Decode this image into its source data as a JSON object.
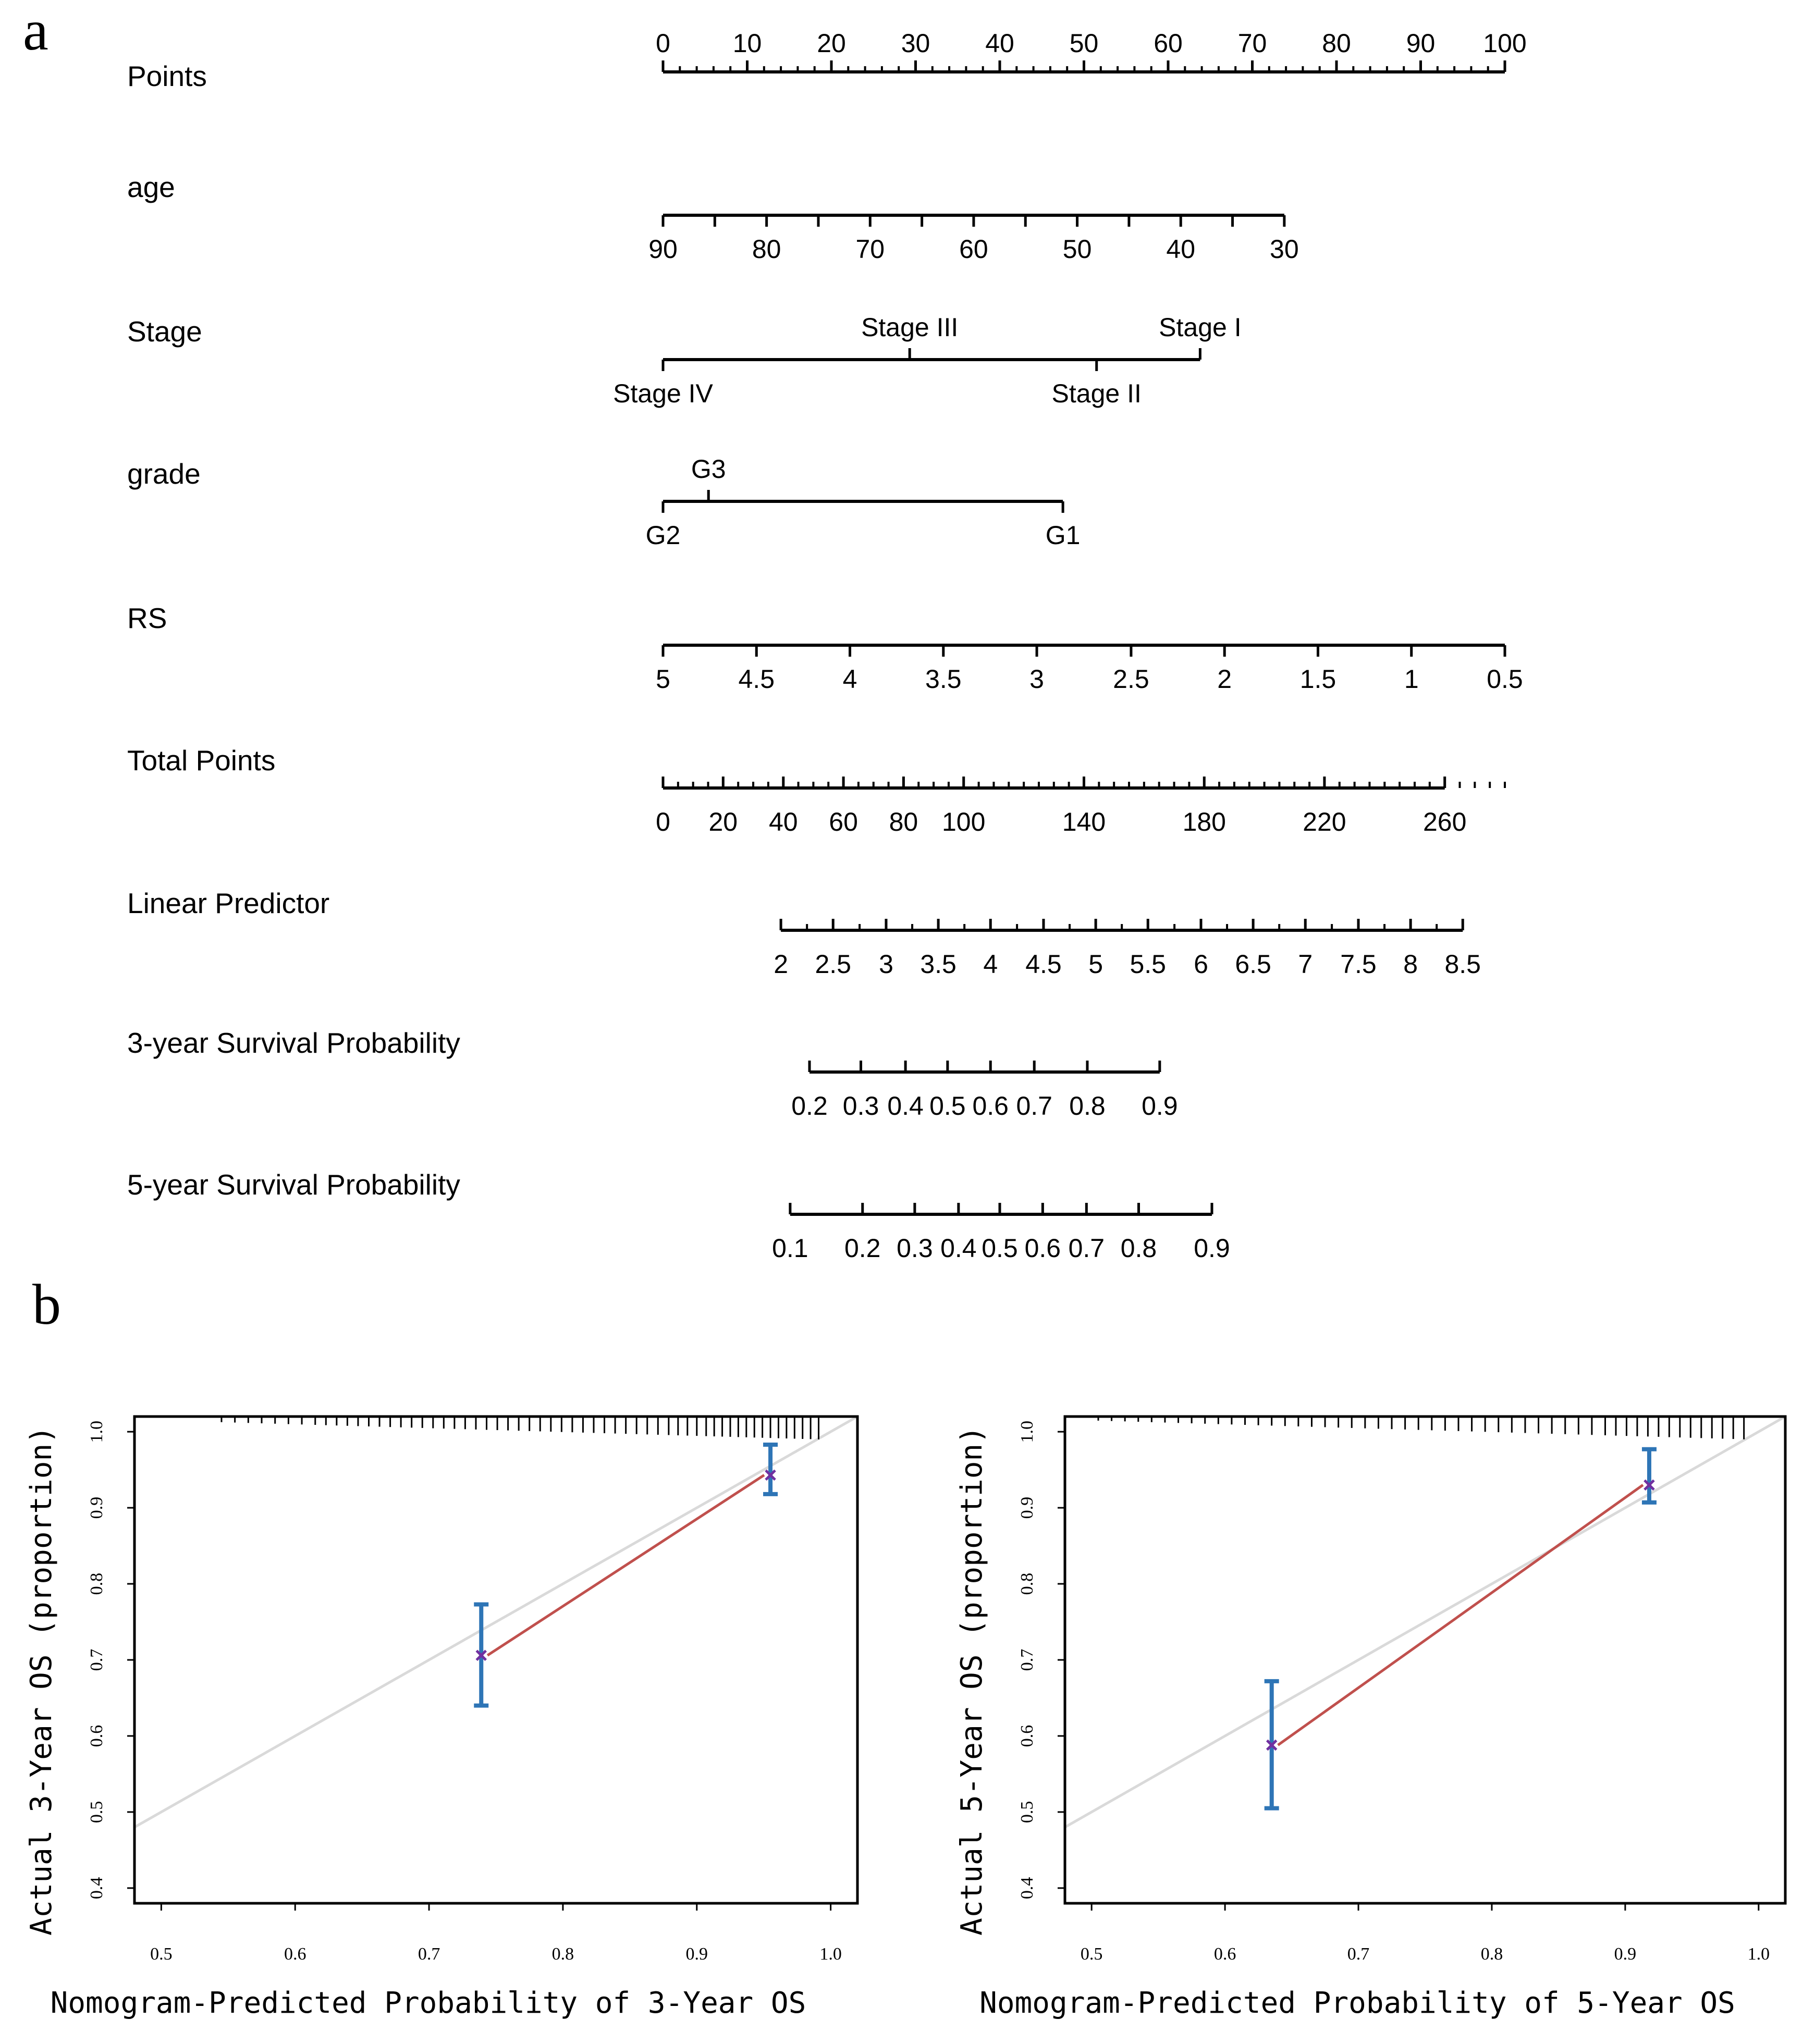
{
  "panel_labels": {
    "a": "a",
    "b": "b"
  },
  "colors": {
    "axis": "#000000",
    "ideal_line": "#d9d9d9",
    "calibration_line": "#c0504d",
    "error_bar": "#2e75b6",
    "point_marker": "#7030a0"
  },
  "chart_data": [
    {
      "type": "nomogram",
      "title": "",
      "rows": [
        {
          "label": "Points",
          "ticks": [
            {
              "label": "0",
              "pts": 0
            },
            {
              "label": "10",
              "pts": 10
            },
            {
              "label": "20",
              "pts": 20
            },
            {
              "label": "30",
              "pts": 30
            },
            {
              "label": "40",
              "pts": 40
            },
            {
              "label": "50",
              "pts": 50
            },
            {
              "label": "60",
              "pts": 60
            },
            {
              "label": "70",
              "pts": 70
            },
            {
              "label": "80",
              "pts": 80
            },
            {
              "label": "90",
              "pts": 90
            },
            {
              "label": "100",
              "pts": 100
            }
          ]
        },
        {
          "label": "age",
          "ticks": [
            {
              "label": "90",
              "pts": 0
            },
            {
              "label": "80",
              "pts": 12.3
            },
            {
              "label": "70",
              "pts": 24.6
            },
            {
              "label": "60",
              "pts": 36.9
            },
            {
              "label": "50",
              "pts": 49.2
            },
            {
              "label": "40",
              "pts": 61.5
            },
            {
              "label": "30",
              "pts": 73.8
            }
          ]
        },
        {
          "label": "Stage",
          "ticks": [
            {
              "label": "Stage IV",
              "pts": 0,
              "pos": "below"
            },
            {
              "label": "Stage III",
              "pts": 29.3,
              "pos": "above"
            },
            {
              "label": "Stage II",
              "pts": 51.5,
              "pos": "below"
            },
            {
              "label": "Stage I",
              "pts": 63.8,
              "pos": "above"
            }
          ]
        },
        {
          "label": "grade",
          "ticks": [
            {
              "label": "G2",
              "pts": 0,
              "pos": "below"
            },
            {
              "label": "G3",
              "pts": 5.4,
              "pos": "above"
            },
            {
              "label": "G1",
              "pts": 47.5,
              "pos": "below"
            }
          ]
        },
        {
          "label": "RS",
          "ticks": [
            {
              "label": "5",
              "pts": 0
            },
            {
              "label": "4.5",
              "pts": 11.1
            },
            {
              "label": "4",
              "pts": 22.2
            },
            {
              "label": "3.5",
              "pts": 33.3
            },
            {
              "label": "3",
              "pts": 44.4
            },
            {
              "label": "2.5",
              "pts": 55.6
            },
            {
              "label": "2",
              "pts": 66.7
            },
            {
              "label": "1.5",
              "pts": 77.8
            },
            {
              "label": "1",
              "pts": 88.9
            },
            {
              "label": "0.5",
              "pts": 100
            }
          ]
        },
        {
          "label": "Total Points",
          "ticks": [
            {
              "label": "0",
              "pts": 0
            },
            {
              "label": "20",
              "pts": 7.14
            },
            {
              "label": "40",
              "pts": 14.29
            },
            {
              "label": "60",
              "pts": 21.43
            },
            {
              "label": "80",
              "pts": 28.57
            },
            {
              "label": "100",
              "pts": 35.71
            },
            {
              "label": "140",
              "pts": 50
            },
            {
              "label": "180",
              "pts": 64.29
            },
            {
              "label": "220",
              "pts": 78.57
            },
            {
              "label": "260",
              "pts": 92.86
            }
          ]
        },
        {
          "label": "Linear Predictor",
          "ticks": [
            {
              "label": "2",
              "pts": 14.0
            },
            {
              "label": "2.5",
              "pts": 20.2
            },
            {
              "label": "3",
              "pts": 26.5
            },
            {
              "label": "3.5",
              "pts": 32.7
            },
            {
              "label": "4",
              "pts": 38.9
            },
            {
              "label": "4.5",
              "pts": 45.2
            },
            {
              "label": "5",
              "pts": 51.4
            },
            {
              "label": "5.5",
              "pts": 57.6
            },
            {
              "label": "6",
              "pts": 63.9
            },
            {
              "label": "6.5",
              "pts": 70.1
            },
            {
              "label": "7",
              "pts": 76.3
            },
            {
              "label": "7.5",
              "pts": 82.6
            },
            {
              "label": "8",
              "pts": 88.8
            },
            {
              "label": "8.5",
              "pts": 95.0
            }
          ]
        },
        {
          "label": "3-year Survival Probability",
          "ticks": [
            {
              "label": "0.2",
              "pts": 17.4
            },
            {
              "label": "0.3",
              "pts": 23.5
            },
            {
              "label": "0.4",
              "pts": 28.8
            },
            {
              "label": "0.5",
              "pts": 33.8
            },
            {
              "label": "0.6",
              "pts": 38.9
            },
            {
              "label": "0.7",
              "pts": 44.1
            },
            {
              "label": "0.8",
              "pts": 50.4
            },
            {
              "label": "0.9",
              "pts": 59.0
            }
          ]
        },
        {
          "label": "5-year Survival Probability",
          "ticks": [
            {
              "label": "0.1",
              "pts": 15.1
            },
            {
              "label": "0.2",
              "pts": 23.7
            },
            {
              "label": "0.3",
              "pts": 29.9
            },
            {
              "label": "0.4",
              "pts": 35.1
            },
            {
              "label": "0.5",
              "pts": 40.0
            },
            {
              "label": "0.6",
              "pts": 45.1
            },
            {
              "label": "0.7",
              "pts": 50.3
            },
            {
              "label": "0.8",
              "pts": 56.5
            },
            {
              "label": "0.9",
              "pts": 65.2
            }
          ]
        }
      ]
    },
    {
      "type": "scatter",
      "title": "",
      "xlabel": "Nomogram-Predicted Probability of 3-Year OS",
      "ylabel": "Actual 3-Year OS (proportion)",
      "xlim": [
        0.48,
        1.02
      ],
      "ylim": [
        0.38,
        1.02
      ],
      "xticks": [
        "0.5",
        "0.6",
        "0.7",
        "0.8",
        "0.9",
        "1.0"
      ],
      "yticks": [
        "0.4",
        "0.5",
        "0.6",
        "0.7",
        "0.8",
        "0.9",
        "1.0"
      ],
      "ideal_line": [
        [
          0.48,
          0.48
        ],
        [
          1.02,
          1.02
        ]
      ],
      "points": [
        {
          "x": 0.739,
          "y": 0.706,
          "lo": 0.64,
          "hi": 0.773
        },
        {
          "x": 0.955,
          "y": 0.943,
          "lo": 0.918,
          "hi": 0.983
        }
      ],
      "rug": [
        0.545,
        0.555,
        0.565,
        0.575,
        0.585,
        0.595,
        0.605,
        0.615,
        0.623,
        0.631,
        0.639,
        0.647,
        0.655,
        0.663,
        0.671,
        0.679,
        0.687,
        0.695,
        0.703,
        0.711,
        0.719,
        0.727,
        0.735,
        0.743,
        0.751,
        0.759,
        0.767,
        0.775,
        0.783,
        0.791,
        0.799,
        0.807,
        0.815,
        0.823,
        0.831,
        0.839,
        0.847,
        0.855,
        0.863,
        0.871,
        0.879,
        0.886,
        0.893,
        0.9,
        0.907,
        0.913,
        0.919,
        0.925,
        0.931,
        0.937,
        0.943,
        0.949,
        0.955,
        0.961,
        0.967,
        0.973,
        0.979,
        0.985,
        0.991
      ]
    },
    {
      "type": "scatter",
      "title": "",
      "xlabel": "Nomogram-Predicted Probability of 5-Year OS",
      "ylabel": "Actual 5-Year OS (proportion)",
      "xlim": [
        0.48,
        1.02
      ],
      "ylim": [
        0.38,
        1.02
      ],
      "xticks": [
        "0.5",
        "0.6",
        "0.7",
        "0.8",
        "0.9",
        "1.0"
      ],
      "yticks": [
        "0.4",
        "0.5",
        "0.6",
        "0.7",
        "0.8",
        "0.9",
        "1.0"
      ],
      "ideal_line": [
        [
          0.48,
          0.48
        ],
        [
          1.02,
          1.02
        ]
      ],
      "points": [
        {
          "x": 0.635,
          "y": 0.588,
          "lo": 0.505,
          "hi": 0.672
        },
        {
          "x": 0.918,
          "y": 0.93,
          "lo": 0.907,
          "hi": 0.977
        }
      ],
      "rug": [
        0.505,
        0.515,
        0.525,
        0.535,
        0.545,
        0.555,
        0.565,
        0.575,
        0.585,
        0.595,
        0.605,
        0.615,
        0.625,
        0.635,
        0.645,
        0.655,
        0.665,
        0.675,
        0.685,
        0.695,
        0.705,
        0.715,
        0.725,
        0.735,
        0.745,
        0.755,
        0.765,
        0.775,
        0.785,
        0.795,
        0.805,
        0.815,
        0.825,
        0.835,
        0.845,
        0.855,
        0.865,
        0.875,
        0.885,
        0.893,
        0.901,
        0.909,
        0.917,
        0.925,
        0.933,
        0.941,
        0.949,
        0.957,
        0.965,
        0.973,
        0.981,
        0.989
      ]
    }
  ]
}
